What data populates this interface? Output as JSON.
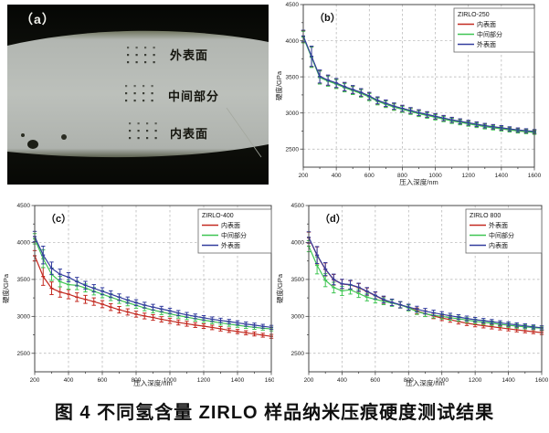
{
  "caption": "图 4  不同氢含量 ZIRLO 样品纳米压痕硬度测试结果",
  "panel_a": {
    "label": "（a）",
    "regions": [
      "外表面",
      "中间部分",
      "内表面"
    ]
  },
  "chart_data": [
    {
      "type": "line",
      "panel_label": "（b）",
      "legend_title": "ZIRLO-250",
      "xlabel": "压入深度/nm",
      "ylabel": "硬度/GPa",
      "xlim": [
        200,
        1600
      ],
      "ylim": [
        2250,
        4500
      ],
      "xticks": [
        200,
        400,
        600,
        800,
        1000,
        1200,
        1400,
        1600
      ],
      "yticks": [
        2500,
        3000,
        3500,
        4000,
        4500
      ],
      "grid": "dashed",
      "legend_position": "top-right",
      "x": [
        200,
        250,
        300,
        350,
        400,
        450,
        500,
        550,
        600,
        650,
        700,
        750,
        800,
        850,
        900,
        950,
        1000,
        1050,
        1100,
        1150,
        1200,
        1250,
        1300,
        1350,
        1400,
        1450,
        1500,
        1550,
        1600
      ],
      "errors": [
        80,
        140,
        90,
        70,
        62,
        58,
        55,
        52,
        50,
        48,
        45,
        44,
        42,
        40,
        40,
        38,
        37,
        36,
        35,
        34,
        33,
        32,
        31,
        30,
        30,
        29,
        28,
        27,
        26
      ],
      "series": [
        {
          "name": "内表面",
          "color": "#c32a21",
          "values": [
            4060,
            3780,
            3500,
            3450,
            3410,
            3360,
            3320,
            3280,
            3230,
            3170,
            3130,
            3090,
            3060,
            3030,
            3000,
            2975,
            2950,
            2925,
            2900,
            2880,
            2860,
            2840,
            2820,
            2805,
            2790,
            2775,
            2760,
            2750,
            2740
          ]
        },
        {
          "name": "中间部分",
          "color": "#3fc553",
          "values": [
            4050,
            3770,
            3490,
            3440,
            3400,
            3350,
            3310,
            3270,
            3220,
            3160,
            3120,
            3080,
            3050,
            3020,
            2990,
            2965,
            2940,
            2915,
            2890,
            2870,
            2850,
            2830,
            2810,
            2795,
            2780,
            2765,
            2750,
            2740,
            2730
          ]
        },
        {
          "name": "外表面",
          "color": "#333d9e",
          "values": [
            4065,
            3785,
            3505,
            3455,
            3415,
            3365,
            3325,
            3285,
            3235,
            3175,
            3135,
            3095,
            3065,
            3035,
            3005,
            2980,
            2955,
            2930,
            2905,
            2885,
            2865,
            2845,
            2825,
            2810,
            2795,
            2780,
            2765,
            2755,
            2745
          ]
        }
      ]
    },
    {
      "type": "line",
      "panel_label": "（c）",
      "legend_title": "ZIRLO-400",
      "xlabel": "压入深度/nm",
      "ylabel": "硬度/GPa",
      "xlim": [
        200,
        1600
      ],
      "ylim": [
        2250,
        4500
      ],
      "xticks": [
        200,
        400,
        600,
        800,
        1000,
        1200,
        1400,
        1600
      ],
      "yticks": [
        2500,
        3000,
        3500,
        4000,
        4500
      ],
      "grid": "dashed",
      "legend_position": "top-right",
      "x": [
        200,
        250,
        300,
        350,
        400,
        450,
        500,
        550,
        600,
        650,
        700,
        750,
        800,
        850,
        900,
        950,
        1000,
        1050,
        1100,
        1150,
        1200,
        1250,
        1300,
        1350,
        1400,
        1450,
        1500,
        1550,
        1600
      ],
      "errors": [
        70,
        120,
        85,
        70,
        62,
        58,
        54,
        50,
        48,
        46,
        44,
        42,
        40,
        39,
        38,
        36,
        35,
        34,
        33,
        32,
        31,
        30,
        30,
        29,
        28,
        28,
        27,
        26,
        26
      ],
      "series": [
        {
          "name": "内表面",
          "color": "#c32a21",
          "values": [
            3820,
            3540,
            3380,
            3330,
            3300,
            3260,
            3230,
            3200,
            3165,
            3125,
            3090,
            3060,
            3030,
            3005,
            2985,
            2960,
            2940,
            2918,
            2900,
            2882,
            2868,
            2850,
            2832,
            2812,
            2795,
            2778,
            2762,
            2745,
            2730
          ]
        },
        {
          "name": "中间部分",
          "color": "#3fc553",
          "values": [
            4050,
            3780,
            3570,
            3470,
            3430,
            3420,
            3385,
            3340,
            3300,
            3260,
            3220,
            3185,
            3150,
            3115,
            3085,
            3060,
            3035,
            3010,
            2990,
            2968,
            2950,
            2930,
            2912,
            2895,
            2880,
            2865,
            2852,
            2840,
            2830
          ]
        },
        {
          "name": "外表面",
          "color": "#333d9e",
          "values": [
            4080,
            3830,
            3650,
            3570,
            3530,
            3470,
            3420,
            3380,
            3340,
            3300,
            3260,
            3220,
            3185,
            3152,
            3125,
            3100,
            3075,
            3045,
            3020,
            3000,
            2980,
            2962,
            2945,
            2930,
            2912,
            2896,
            2882,
            2866,
            2852
          ]
        }
      ]
    },
    {
      "type": "line",
      "panel_label": "（d）",
      "legend_title": "ZIRLO 800",
      "xlabel": "压入深度/nm",
      "ylabel": "硬度/GPa",
      "xlim": [
        200,
        1600
      ],
      "ylim": [
        2250,
        4500
      ],
      "xticks": [
        200,
        400,
        600,
        800,
        1000,
        1200,
        1400,
        1600
      ],
      "yticks": [
        2500,
        3000,
        3500,
        4000,
        4500
      ],
      "grid": "dashed",
      "legend_position": "top-right",
      "x": [
        200,
        250,
        300,
        350,
        400,
        450,
        500,
        550,
        600,
        650,
        700,
        750,
        800,
        850,
        900,
        950,
        1000,
        1050,
        1100,
        1150,
        1200,
        1250,
        1300,
        1350,
        1400,
        1450,
        1500,
        1550,
        1600
      ],
      "errors": [
        75,
        115,
        88,
        72,
        62,
        58,
        54,
        50,
        48,
        46,
        44,
        42,
        40,
        39,
        38,
        36,
        35,
        34,
        33,
        32,
        31,
        30,
        30,
        29,
        28,
        28,
        27,
        26,
        26
      ],
      "series": [
        {
          "name": "外表面",
          "color": "#c32a21",
          "values": [
            4065,
            3825,
            3635,
            3495,
            3438,
            3425,
            3390,
            3335,
            3280,
            3222,
            3185,
            3155,
            3118,
            3075,
            3038,
            3005,
            2978,
            2955,
            2930,
            2908,
            2890,
            2874,
            2860,
            2846,
            2832,
            2818,
            2805,
            2792,
            2780
          ]
        },
        {
          "name": "中间部分",
          "color": "#3fc553",
          "values": [
            3950,
            3690,
            3490,
            3390,
            3345,
            3360,
            3310,
            3260,
            3230,
            3205,
            3180,
            3155,
            3115,
            3065,
            3035,
            3015,
            3000,
            2982,
            2968,
            2950,
            2932,
            2920,
            2908,
            2892,
            2880,
            2868,
            2858,
            2848,
            2840
          ]
        },
        {
          "name": "内表面",
          "color": "#333d9e",
          "values": [
            4070,
            3830,
            3640,
            3500,
            3440,
            3430,
            3395,
            3340,
            3285,
            3228,
            3190,
            3158,
            3125,
            3098,
            3070,
            3048,
            3028,
            3008,
            2990,
            2972,
            2955,
            2942,
            2928,
            2912,
            2898,
            2885,
            2872,
            2858,
            2846
          ]
        }
      ]
    }
  ]
}
